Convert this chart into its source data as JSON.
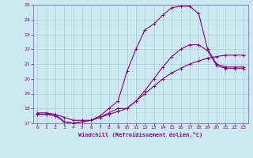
{
  "title": "",
  "xlabel": "Windchill (Refroidissement éolien,°C)",
  "bg_color": "#cce8f0",
  "grid_color": "#aaccd8",
  "line_color": "#880088",
  "spine_color": "#7777aa",
  "xlim": [
    -0.5,
    23.5
  ],
  "ylim": [
    17,
    25
  ],
  "yticks": [
    17,
    18,
    19,
    20,
    21,
    22,
    23,
    24,
    25
  ],
  "xticks": [
    0,
    1,
    2,
    3,
    4,
    5,
    6,
    7,
    8,
    9,
    10,
    11,
    12,
    13,
    14,
    15,
    16,
    17,
    18,
    19,
    20,
    21,
    22,
    23
  ],
  "series": [
    {
      "x": [
        0,
        1,
        2,
        3,
        4,
        5,
        6,
        7,
        8,
        9,
        10,
        11,
        12,
        13,
        14,
        15,
        16,
        17,
        18,
        19,
        20,
        21,
        22,
        23
      ],
      "y": [
        17.7,
        17.7,
        17.6,
        17.4,
        17.2,
        17.2,
        17.2,
        17.4,
        17.6,
        17.8,
        18.0,
        18.5,
        19.0,
        19.5,
        20.0,
        20.4,
        20.7,
        21.0,
        21.2,
        21.4,
        21.5,
        21.6,
        21.6,
        21.6
      ]
    },
    {
      "x": [
        0,
        1,
        2,
        3,
        4,
        5,
        6,
        7,
        8,
        9,
        10,
        11,
        12,
        13,
        14,
        15,
        16,
        17,
        18,
        19,
        20,
        21,
        22,
        23
      ],
      "y": [
        17.6,
        17.6,
        17.6,
        17.1,
        17.0,
        17.1,
        17.2,
        17.4,
        17.7,
        18.0,
        18.0,
        18.5,
        19.2,
        20.0,
        20.8,
        21.5,
        22.0,
        22.3,
        22.3,
        21.9,
        20.9,
        20.7,
        20.7,
        20.7
      ]
    },
    {
      "x": [
        0,
        1,
        2,
        3,
        4,
        5,
        6,
        7,
        8,
        9,
        10,
        11,
        12,
        13,
        14,
        15,
        16,
        17,
        18,
        19,
        20,
        21,
        22,
        23
      ],
      "y": [
        17.6,
        17.6,
        17.5,
        17.1,
        17.0,
        17.1,
        17.2,
        17.5,
        18.0,
        18.5,
        20.5,
        22.0,
        23.3,
        23.7,
        24.3,
        24.8,
        24.9,
        24.9,
        24.4,
        22.0,
        21.0,
        20.8,
        20.8,
        20.8
      ]
    }
  ]
}
